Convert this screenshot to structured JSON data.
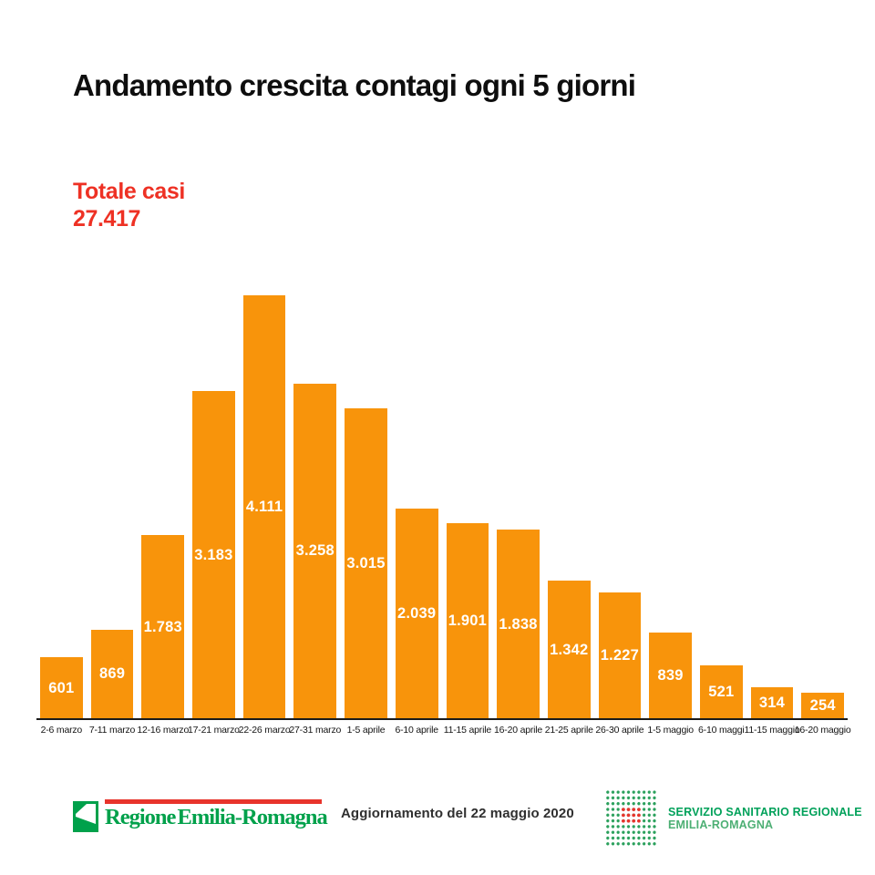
{
  "page": {
    "title": "Andamento crescita contagi ogni 5 giorni"
  },
  "total": {
    "label": "Totale casi",
    "value": "27.417"
  },
  "chart_data": {
    "type": "bar",
    "title": "Andamento crescita contagi ogni 5 giorni",
    "xlabel": "",
    "ylabel": "",
    "categories": [
      "2-6 marzo",
      "7-11 marzo",
      "12-16 marzo",
      "17-21 marzo",
      "22-26 marzo",
      "27-31 marzo",
      "1-5 aprile",
      "6-10 aprile",
      "11-15 aprile",
      "16-20 aprile",
      "21-25 aprile",
      "26-30 aprile",
      "1-5 maggio",
      "6-10 maggi",
      "11-15 maggio",
      "16-20 maggio"
    ],
    "values": [
      601,
      869,
      1783,
      3183,
      4111,
      3258,
      3015,
      2039,
      1901,
      1838,
      1342,
      1227,
      839,
      521,
      314,
      254
    ],
    "value_labels": [
      "601",
      "869",
      "1.783",
      "3.183",
      "4.111",
      "3.258",
      "3.015",
      "2.039",
      "1.901",
      "1.838",
      "1.342",
      "1.227",
      "839",
      "521",
      "314",
      "254"
    ],
    "ylim": [
      0,
      4111
    ],
    "grid": false,
    "legend": false,
    "value_label_position": "centered-inside-bar",
    "bar_color": "#f8940b",
    "total_cases": "27.417"
  },
  "footer": {
    "region_logo_text": "Regione Emilia-Romagna",
    "update_text": "Aggiornamento del 22 maggio 2020",
    "ssr_line1": "SERVIZIO SANITARIO REGIONALE",
    "ssr_line2": "EMILIA-ROMAGNA"
  },
  "colors": {
    "bar": "#f8940b",
    "total_text": "#ee3124",
    "axis": "#1a1a1a",
    "region_green": "#00a14b",
    "ssr_green": "#2aa05c",
    "logo_red": "#e8342c"
  }
}
